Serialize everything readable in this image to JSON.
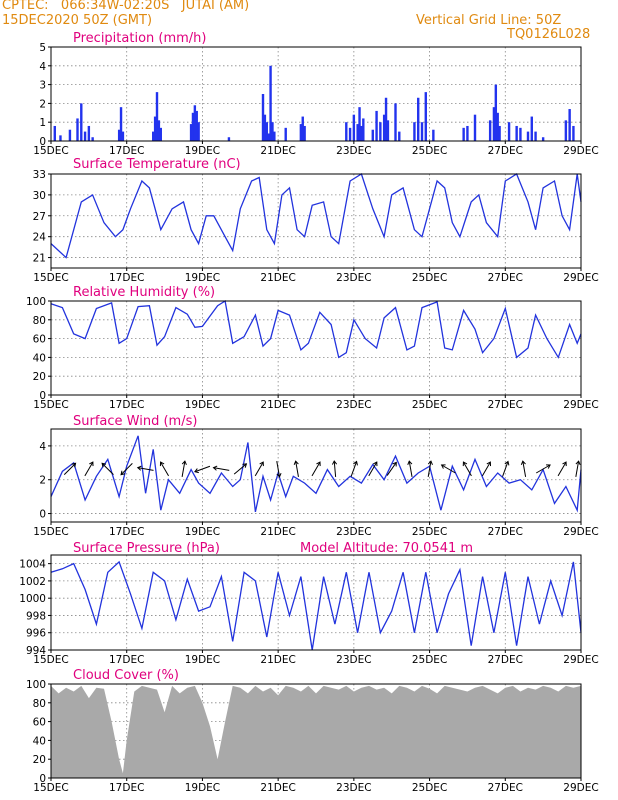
{
  "header": {
    "line1": "CPTEC:   066:34W-02:20S   JUTAI (AM)",
    "line2": "15DEC2020 50Z (GMT)",
    "vgrid": "Vertical Grid Line: 50Z",
    "code": "TQ0126L028"
  },
  "colors": {
    "line": "#2233dd",
    "bar": "#2233ee",
    "cloud": "#a9a9a9",
    "title": "#e0007e",
    "header": "#e08a10"
  },
  "chart_data": [
    {
      "type": "bar",
      "title": "Precipitation (mm/h)",
      "ylim": [
        0,
        5
      ],
      "yticks": [
        0,
        1,
        2,
        3,
        4,
        5
      ],
      "xlabels": [
        "15DEC",
        "17DEC",
        "19DEC",
        "21DEC",
        "23DEC",
        "25DEC",
        "27DEC",
        "29DEC"
      ],
      "x_unit": "days since 15DEC2020",
      "bars": [
        [
          0.1,
          0.8
        ],
        [
          0.25,
          0.3
        ],
        [
          0.5,
          0.6
        ],
        [
          0.7,
          1.2
        ],
        [
          0.8,
          2.0
        ],
        [
          0.9,
          0.5
        ],
        [
          1.0,
          0.8
        ],
        [
          1.1,
          0.2
        ],
        [
          1.8,
          0.6
        ],
        [
          1.85,
          1.8
        ],
        [
          1.9,
          0.5
        ],
        [
          2.7,
          0.5
        ],
        [
          2.75,
          1.3
        ],
        [
          2.8,
          2.6
        ],
        [
          2.85,
          1.1
        ],
        [
          2.9,
          0.7
        ],
        [
          3.7,
          0.9
        ],
        [
          3.75,
          1.5
        ],
        [
          3.8,
          1.9
        ],
        [
          3.85,
          1.6
        ],
        [
          3.9,
          1.0
        ],
        [
          4.7,
          0.2
        ],
        [
          5.6,
          2.5
        ],
        [
          5.65,
          1.4
        ],
        [
          5.7,
          1.0
        ],
        [
          5.75,
          0.4
        ],
        [
          5.8,
          4.0
        ],
        [
          5.85,
          1.0
        ],
        [
          5.9,
          0.5
        ],
        [
          6.2,
          0.7
        ],
        [
          6.6,
          0.9
        ],
        [
          6.65,
          1.3
        ],
        [
          6.7,
          0.8
        ],
        [
          7.8,
          1.0
        ],
        [
          7.9,
          0.7
        ],
        [
          8.0,
          1.4
        ],
        [
          8.1,
          0.9
        ],
        [
          8.15,
          1.8
        ],
        [
          8.2,
          0.8
        ],
        [
          8.25,
          1.2
        ],
        [
          8.5,
          0.6
        ],
        [
          8.6,
          1.6
        ],
        [
          8.7,
          1.0
        ],
        [
          8.8,
          1.4
        ],
        [
          8.85,
          2.3
        ],
        [
          8.9,
          1.1
        ],
        [
          9.1,
          2.0
        ],
        [
          9.2,
          0.5
        ],
        [
          9.6,
          1.0
        ],
        [
          9.7,
          2.3
        ],
        [
          9.8,
          1.0
        ],
        [
          9.9,
          2.6
        ],
        [
          10.1,
          0.6
        ],
        [
          10.9,
          0.7
        ],
        [
          11.0,
          0.8
        ],
        [
          11.2,
          1.4
        ],
        [
          11.6,
          1.1
        ],
        [
          11.7,
          1.8
        ],
        [
          11.75,
          3.0
        ],
        [
          11.8,
          1.5
        ],
        [
          11.85,
          0.8
        ],
        [
          12.1,
          1.0
        ],
        [
          12.3,
          0.8
        ],
        [
          12.4,
          0.7
        ],
        [
          12.6,
          0.5
        ],
        [
          12.7,
          1.3
        ],
        [
          12.8,
          0.5
        ],
        [
          13.0,
          0.2
        ],
        [
          13.6,
          1.1
        ],
        [
          13.7,
          1.7
        ],
        [
          13.8,
          0.8
        ]
      ]
    },
    {
      "type": "line",
      "title": "Surface Temperature (nC)",
      "ylim": [
        19.5,
        33
      ],
      "yticks": [
        21,
        24,
        27,
        30,
        33
      ],
      "xlabels": [
        "15DEC",
        "17DEC",
        "19DEC",
        "21DEC",
        "23DEC",
        "25DEC",
        "27DEC",
        "29DEC"
      ],
      "x": [
        0,
        0.4,
        0.8,
        1.1,
        1.4,
        1.7,
        1.9,
        2.1,
        2.4,
        2.6,
        2.9,
        3.2,
        3.5,
        3.7,
        3.9,
        4.1,
        4.3,
        4.6,
        4.8,
        5.0,
        5.3,
        5.5,
        5.7,
        5.9,
        6.1,
        6.3,
        6.5,
        6.7,
        6.9,
        7.2,
        7.4,
        7.6,
        7.9,
        8.2,
        8.5,
        8.8,
        9.0,
        9.3,
        9.6,
        9.8,
        10.2,
        10.4,
        10.6,
        10.8,
        11.1,
        11.3,
        11.5,
        11.8,
        12.0,
        12.3,
        12.6,
        12.8,
        13.0,
        13.3,
        13.5,
        13.7,
        13.9,
        14.0
      ],
      "y": [
        23,
        21,
        29,
        30,
        26,
        24,
        25,
        28,
        32,
        31,
        25,
        28,
        29,
        25,
        23,
        27,
        27,
        24,
        22,
        28,
        32,
        32.5,
        25,
        23,
        30,
        31,
        25,
        24,
        28.5,
        29,
        24,
        23,
        32,
        33,
        28,
        24,
        30,
        31,
        25,
        24,
        32,
        31,
        26,
        24,
        29,
        30,
        26,
        24,
        32,
        33,
        29,
        25,
        31,
        32,
        27,
        25,
        33,
        29
      ]
    },
    {
      "type": "line",
      "title": "Relative Humidity (%)",
      "ylim": [
        0,
        100
      ],
      "yticks": [
        0,
        20,
        40,
        60,
        80,
        100
      ],
      "xlabels": [
        "15DEC",
        "17DEC",
        "19DEC",
        "21DEC",
        "23DEC",
        "25DEC",
        "27DEC",
        "29DEC"
      ],
      "x": [
        0,
        0.3,
        0.6,
        0.9,
        1.2,
        1.6,
        1.8,
        2.0,
        2.3,
        2.6,
        2.8,
        3.0,
        3.3,
        3.6,
        3.8,
        4.0,
        4.4,
        4.6,
        4.8,
        5.1,
        5.4,
        5.6,
        5.8,
        6.0,
        6.3,
        6.6,
        6.8,
        7.1,
        7.4,
        7.6,
        7.8,
        8.0,
        8.3,
        8.6,
        8.8,
        9.1,
        9.4,
        9.6,
        9.8,
        10.2,
        10.4,
        10.6,
        10.9,
        11.2,
        11.4,
        11.7,
        12.0,
        12.3,
        12.6,
        12.8,
        13.1,
        13.4,
        13.7,
        13.9,
        14.0
      ],
      "y": [
        97,
        93,
        65,
        60,
        92,
        98,
        55,
        60,
        94,
        95,
        53,
        62,
        93,
        86,
        72,
        73,
        95,
        100,
        55,
        62,
        85,
        52,
        60,
        90,
        85,
        48,
        55,
        88,
        75,
        40,
        45,
        80,
        60,
        50,
        82,
        93,
        48,
        52,
        93,
        99,
        50,
        48,
        90,
        70,
        45,
        60,
        92,
        40,
        50,
        85,
        60,
        40,
        75,
        55,
        65
      ]
    },
    {
      "type": "line",
      "title": "Surface Wind (m/s)",
      "ylim": [
        -0.5,
        5
      ],
      "yticks": [
        0,
        2,
        4
      ],
      "xlabels": [
        "15DEC",
        "17DEC",
        "19DEC",
        "21DEC",
        "23DEC",
        "25DEC",
        "27DEC",
        "29DEC"
      ],
      "x": [
        0,
        0.3,
        0.6,
        0.9,
        1.2,
        1.5,
        1.8,
        2.0,
        2.3,
        2.5,
        2.7,
        2.9,
        3.1,
        3.4,
        3.7,
        3.9,
        4.2,
        4.5,
        4.8,
        5.0,
        5.2,
        5.4,
        5.6,
        5.8,
        6.0,
        6.2,
        6.4,
        6.7,
        7.0,
        7.3,
        7.6,
        7.9,
        8.2,
        8.5,
        8.8,
        9.1,
        9.4,
        9.7,
        10.0,
        10.3,
        10.6,
        10.9,
        11.2,
        11.5,
        11.8,
        12.1,
        12.4,
        12.7,
        13.0,
        13.3,
        13.6,
        13.9,
        14.0
      ],
      "y": [
        1,
        2.5,
        3.0,
        0.8,
        2.2,
        3.2,
        1.0,
        2.8,
        4.6,
        1.2,
        3.8,
        0.2,
        2.0,
        1.2,
        2.6,
        1.8,
        1.2,
        2.4,
        1.6,
        2.0,
        4.2,
        0.1,
        2.2,
        0.8,
        2.4,
        1.0,
        2.2,
        1.8,
        1.2,
        2.6,
        1.6,
        2.2,
        1.8,
        2.9,
        2.0,
        3.4,
        1.8,
        2.4,
        2.8,
        0.2,
        2.8,
        1.4,
        3.2,
        1.6,
        2.4,
        1.8,
        2.0,
        1.4,
        2.6,
        0.6,
        1.6,
        0.2,
        2.6
      ],
      "arrow_x": [
        0.5,
        1.0,
        1.5,
        2.0,
        2.5,
        3.0,
        3.5,
        4.0,
        4.5,
        5.0,
        5.5,
        6.0,
        6.5,
        7.0,
        7.5,
        8.0,
        8.5,
        9.0,
        9.5,
        10.0,
        10.5,
        11.0,
        11.5,
        12.0,
        12.5,
        13.0,
        13.5,
        13.9
      ],
      "arrow_dir_deg": [
        45,
        60,
        135,
        225,
        170,
        120,
        80,
        200,
        170,
        40,
        60,
        280,
        100,
        60,
        95,
        70,
        60,
        55,
        100,
        80,
        150,
        120,
        60,
        70,
        100,
        30,
        60,
        80
      ]
    },
    {
      "type": "line",
      "title": "Surface Pressure (hPa)",
      "annotation": "Model Altitude: 70.0541  m",
      "ylim": [
        994,
        1005
      ],
      "yticks": [
        994,
        996,
        998,
        1000,
        1002,
        1004
      ],
      "xlabels": [
        "15DEC",
        "17DEC",
        "19DEC",
        "21DEC",
        "23DEC",
        "25DEC",
        "27DEC",
        "29DEC"
      ],
      "x": [
        0,
        0.3,
        0.6,
        0.9,
        1.2,
        1.5,
        1.8,
        2.1,
        2.4,
        2.7,
        3.0,
        3.3,
        3.6,
        3.9,
        4.2,
        4.5,
        4.8,
        5.1,
        5.4,
        5.7,
        6.0,
        6.3,
        6.6,
        6.9,
        7.2,
        7.5,
        7.8,
        8.1,
        8.4,
        8.7,
        9.0,
        9.3,
        9.6,
        9.9,
        10.2,
        10.5,
        10.8,
        11.1,
        11.4,
        11.7,
        12.0,
        12.3,
        12.6,
        12.9,
        13.2,
        13.5,
        13.8,
        14.0
      ],
      "y": [
        1003,
        1003.4,
        1004,
        1001,
        997,
        1003,
        1004.2,
        1000.5,
        996.5,
        1003,
        1002,
        997.5,
        1002.2,
        998.5,
        999,
        1002.5,
        995,
        1003,
        1002,
        995.5,
        1003,
        998,
        1002.5,
        994,
        1002.5,
        997,
        1003,
        996,
        1003,
        996,
        998.5,
        1003,
        996,
        1003,
        996,
        1000.5,
        1003.3,
        994.5,
        1002.5,
        996,
        1003,
        994.5,
        1002.5,
        997,
        1002,
        998,
        1004.2,
        996
      ]
    },
    {
      "type": "area",
      "title": "Cloud Cover (%)",
      "ylim": [
        0,
        100
      ],
      "yticks": [
        0,
        20,
        40,
        60,
        80,
        100
      ],
      "xlabels": [
        "15DEC",
        "17DEC",
        "19DEC",
        "21DEC",
        "23DEC",
        "25DEC",
        "27DEC",
        "29DEC"
      ],
      "x": [
        0,
        0.2,
        0.4,
        0.6,
        0.8,
        1.0,
        1.2,
        1.4,
        1.6,
        1.8,
        1.9,
        2.0,
        2.2,
        2.4,
        2.6,
        2.8,
        3.0,
        3.2,
        3.4,
        3.6,
        3.8,
        4.0,
        4.2,
        4.4,
        4.6,
        4.8,
        5.0,
        5.2,
        5.4,
        5.6,
        5.8,
        6.0,
        6.2,
        6.4,
        6.6,
        6.8,
        7.0,
        7.2,
        7.4,
        7.6,
        7.8,
        8.0,
        8.2,
        8.4,
        8.6,
        8.8,
        9.0,
        9.2,
        9.4,
        9.6,
        9.8,
        10.0,
        10.2,
        10.4,
        10.6,
        10.8,
        11.0,
        11.2,
        11.4,
        11.6,
        11.8,
        12.0,
        12.2,
        12.4,
        12.6,
        12.8,
        13.0,
        13.2,
        13.4,
        13.6,
        13.8,
        14.0
      ],
      "y": [
        98,
        90,
        96,
        92,
        98,
        85,
        96,
        95,
        60,
        20,
        5,
        40,
        92,
        98,
        96,
        94,
        70,
        98,
        90,
        96,
        98,
        80,
        55,
        20,
        60,
        98,
        96,
        90,
        98,
        92,
        96,
        88,
        98,
        96,
        92,
        98,
        90,
        98,
        96,
        94,
        98,
        92,
        96,
        98,
        94,
        96,
        90,
        98,
        96,
        92,
        98,
        95,
        90,
        98,
        96,
        94,
        92,
        96,
        98,
        94,
        90,
        96,
        98,
        92,
        96,
        94,
        98,
        96,
        92,
        98,
        96,
        98
      ]
    }
  ]
}
